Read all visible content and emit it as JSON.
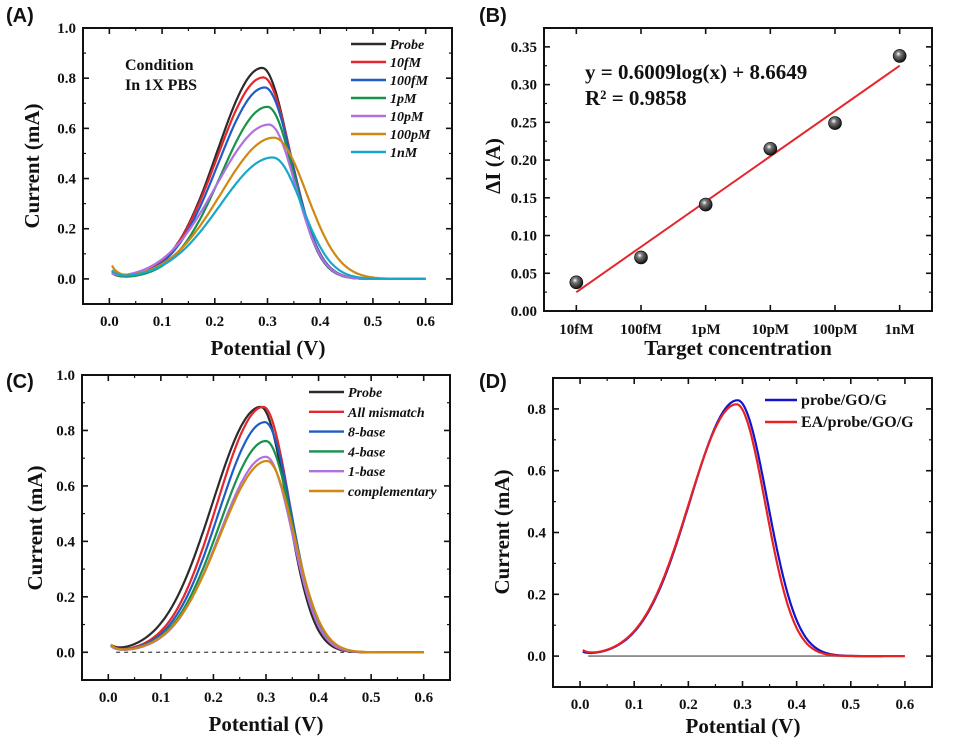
{
  "figure": {
    "panels": [
      "(A)",
      "(B)",
      "(C)",
      "(D)"
    ]
  },
  "chart_data": [
    {
      "id": "A",
      "type": "line",
      "panel_label": "(A)",
      "title": "",
      "xlabel": "Potential (V)",
      "ylabel": "Current (mA)",
      "xlim": [
        -0.05,
        0.65
      ],
      "ylim": [
        -0.1,
        1.0
      ],
      "xticks": [
        "0.0",
        "0.1",
        "0.2",
        "0.3",
        "0.4",
        "0.5",
        "0.6"
      ],
      "xtick_values": [
        0.0,
        0.1,
        0.2,
        0.3,
        0.4,
        0.5,
        0.6
      ],
      "yticks": [
        "0.0",
        "0.2",
        "0.4",
        "0.6",
        "0.8",
        "1.0"
      ],
      "ytick_values": [
        0.0,
        0.2,
        0.4,
        0.6,
        0.8,
        1.0
      ],
      "grid": false,
      "annotation": [
        "Condition",
        "In 1X PBS"
      ],
      "legend_position": "top-right",
      "x_range": [
        0.005,
        0.6
      ],
      "series": [
        {
          "name": "Probe",
          "color": "#2b2b2b",
          "peak_x": 0.29,
          "peak_y": 0.841,
          "start_y": 0.02,
          "width_left": 0.085,
          "width_right": 0.052
        },
        {
          "name": "10fM",
          "color": "#e5262c",
          "peak_x": 0.292,
          "peak_y": 0.803,
          "start_y": 0.02,
          "width_left": 0.087,
          "width_right": 0.053
        },
        {
          "name": "100fM",
          "color": "#1e5dc6",
          "peak_x": 0.295,
          "peak_y": 0.763,
          "start_y": 0.03,
          "width_left": 0.088,
          "width_right": 0.052
        },
        {
          "name": "1pM",
          "color": "#17924a",
          "peak_x": 0.3,
          "peak_y": 0.686,
          "start_y": 0.025,
          "width_left": 0.088,
          "width_right": 0.05
        },
        {
          "name": "10pM",
          "color": "#b070e0",
          "peak_x": 0.303,
          "peak_y": 0.615,
          "start_y": 0.015,
          "width_left": 0.1,
          "width_right": 0.05
        },
        {
          "name": "100pM",
          "color": "#d0880f",
          "peak_x": 0.312,
          "peak_y": 0.563,
          "start_y": 0.048,
          "width_left": 0.1,
          "width_right": 0.062
        },
        {
          "name": "1nM",
          "color": "#17a7c9",
          "peak_x": 0.31,
          "peak_y": 0.484,
          "start_y": 0.03,
          "width_left": 0.1,
          "width_right": 0.055
        }
      ]
    },
    {
      "id": "B",
      "type": "scatter",
      "panel_label": "(B)",
      "title": "",
      "xlabel": "Target concentration",
      "ylabel": "ΔI (A)",
      "categories": [
        "10fM",
        "100fM",
        "1pM",
        "10pM",
        "100pM",
        "1nM"
      ],
      "values": [
        0.038,
        0.071,
        0.141,
        0.215,
        0.249,
        0.338
      ],
      "ylim": [
        0.0,
        0.375
      ],
      "yticks": [
        "0.00",
        "0.05",
        "0.10",
        "0.15",
        "0.20",
        "0.25",
        "0.30",
        "0.35"
      ],
      "ytick_values": [
        0.0,
        0.05,
        0.1,
        0.15,
        0.2,
        0.25,
        0.3,
        0.35
      ],
      "grid": false,
      "fit": {
        "equation": "y = 0.6009log(x) + 8.6649",
        "r_squared": "R² = 0.9858",
        "color": "#e5262c",
        "start_y": 0.025,
        "end_y": 0.325
      },
      "marker_color": "#111111"
    },
    {
      "id": "C",
      "type": "line",
      "panel_label": "(C)",
      "title": "",
      "xlabel": "Potential (V)",
      "ylabel": "Current (mA)",
      "xlim": [
        -0.05,
        0.65
      ],
      "ylim": [
        -0.1,
        1.0
      ],
      "xticks": [
        "0.0",
        "0.1",
        "0.2",
        "0.3",
        "0.4",
        "0.5",
        "0.6"
      ],
      "xtick_values": [
        0.0,
        0.1,
        0.2,
        0.3,
        0.4,
        0.5,
        0.6
      ],
      "yticks": [
        "0.0",
        "0.2",
        "0.4",
        "0.6",
        "0.8",
        "1.0"
      ],
      "ytick_values": [
        0.0,
        0.2,
        0.4,
        0.6,
        0.8,
        1.0
      ],
      "grid": false,
      "baseline": {
        "y": 0.0,
        "style": "dashed",
        "color": "#555555"
      },
      "legend_position": "top-right",
      "x_range": [
        0.005,
        0.6
      ],
      "series": [
        {
          "name": "Probe",
          "color": "#2b2b2b",
          "peak_x": 0.29,
          "peak_y": 0.885,
          "start_y": 0.02,
          "width_left": 0.092,
          "width_right": 0.05
        },
        {
          "name": "All mismatch",
          "color": "#e5262c",
          "peak_x": 0.295,
          "peak_y": 0.885,
          "start_y": 0.02,
          "width_left": 0.088,
          "width_right": 0.05
        },
        {
          "name": "8-base",
          "color": "#1e5dc6",
          "peak_x": 0.298,
          "peak_y": 0.83,
          "start_y": 0.02,
          "width_left": 0.088,
          "width_right": 0.05
        },
        {
          "name": "4-base",
          "color": "#17924a",
          "peak_x": 0.3,
          "peak_y": 0.762,
          "start_y": 0.02,
          "width_left": 0.088,
          "width_right": 0.05
        },
        {
          "name": "1-base",
          "color": "#b070e0",
          "peak_x": 0.3,
          "peak_y": 0.705,
          "start_y": 0.02,
          "width_left": 0.088,
          "width_right": 0.05
        },
        {
          "name": "complementary",
          "color": "#d0880f",
          "peak_x": 0.302,
          "peak_y": 0.69,
          "start_y": 0.025,
          "width_left": 0.09,
          "width_right": 0.052
        }
      ]
    },
    {
      "id": "D",
      "type": "line",
      "panel_label": "(D)",
      "title": "",
      "xlabel": "Potential (V)",
      "ylabel": "Current (mA)",
      "xlim": [
        -0.05,
        0.65
      ],
      "ylim": [
        -0.1,
        0.9
      ],
      "xticks": [
        "0.0",
        "0.1",
        "0.2",
        "0.3",
        "0.4",
        "0.5",
        "0.6"
      ],
      "xtick_values": [
        0.0,
        0.1,
        0.2,
        0.3,
        0.4,
        0.5,
        0.6
      ],
      "yticks": [
        "0.0",
        "0.2",
        "0.4",
        "0.6",
        "0.8"
      ],
      "ytick_values": [
        0.0,
        0.2,
        0.4,
        0.6,
        0.8
      ],
      "grid": false,
      "baseline": {
        "y": 0.0,
        "style": "solid",
        "color": "#666666",
        "x_end": 0.56
      },
      "legend_position": "top-right",
      "series": [
        {
          "name": "probe/GO/G",
          "color": "#1414cc",
          "peak_x": 0.291,
          "peak_y": 0.828,
          "start_y": 0.01,
          "width_left": 0.088,
          "width_right": 0.055,
          "x_range": [
            0.005,
            0.56
          ]
        },
        {
          "name": "EA/probe/GO/G",
          "color": "#e82222",
          "peak_x": 0.289,
          "peak_y": 0.815,
          "start_y": 0.015,
          "width_left": 0.088,
          "width_right": 0.053,
          "x_range": [
            0.005,
            0.6
          ]
        }
      ]
    }
  ]
}
